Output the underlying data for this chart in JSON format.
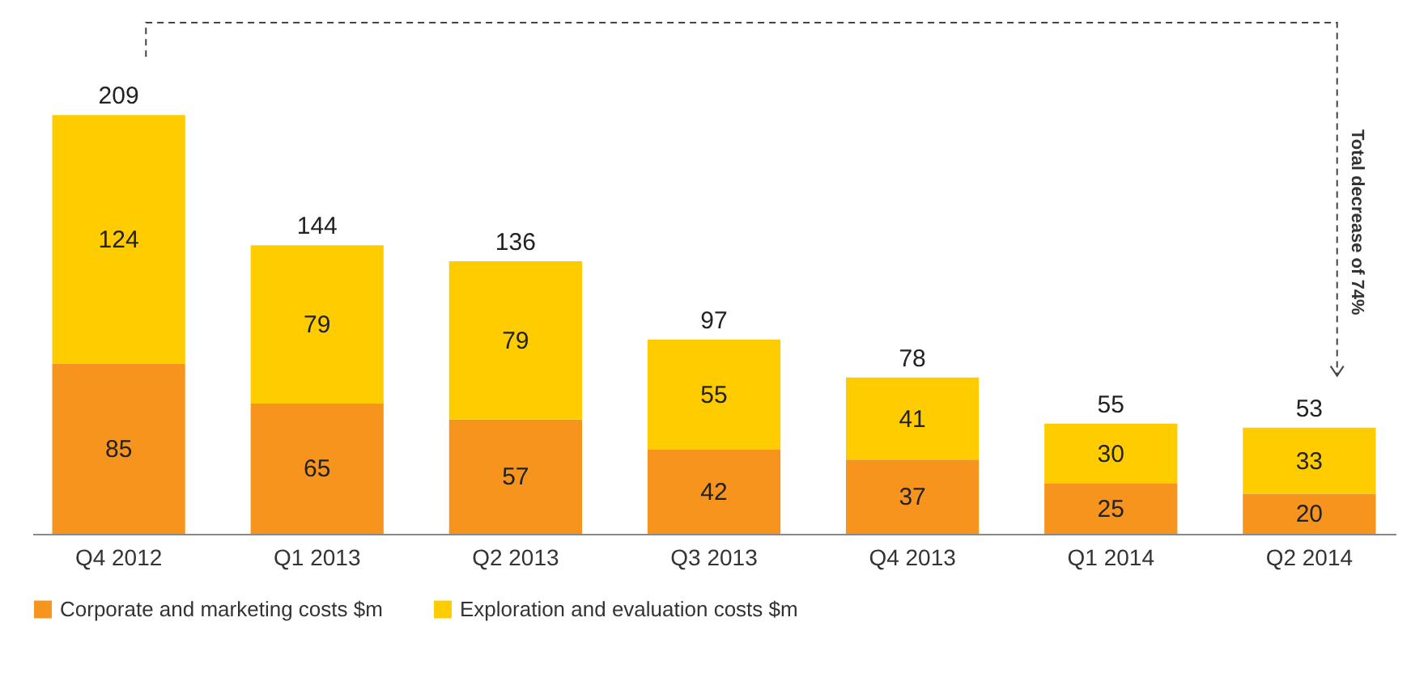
{
  "chart_data": {
    "type": "bar",
    "stacked": true,
    "categories": [
      "Q4 2012",
      "Q1 2013",
      "Q2 2013",
      "Q3 2013",
      "Q4 2013",
      "Q1 2014",
      "Q2 2014"
    ],
    "series": [
      {
        "name": "Corporate and marketing costs $m",
        "color": "#f7941d",
        "values": [
          85,
          65,
          57,
          42,
          37,
          25,
          20
        ]
      },
      {
        "name": "Exploration and evaluation costs $m",
        "color": "#ffcc00",
        "values": [
          124,
          79,
          79,
          55,
          41,
          30,
          33
        ]
      }
    ],
    "data_labels": true,
    "totals": [
      "209",
      "144",
      "136",
      "97",
      "78",
      "55",
      "53"
    ],
    "annotations": [
      "Total decrease of 74%"
    ],
    "legend": "bottom",
    "grid": false
  }
}
